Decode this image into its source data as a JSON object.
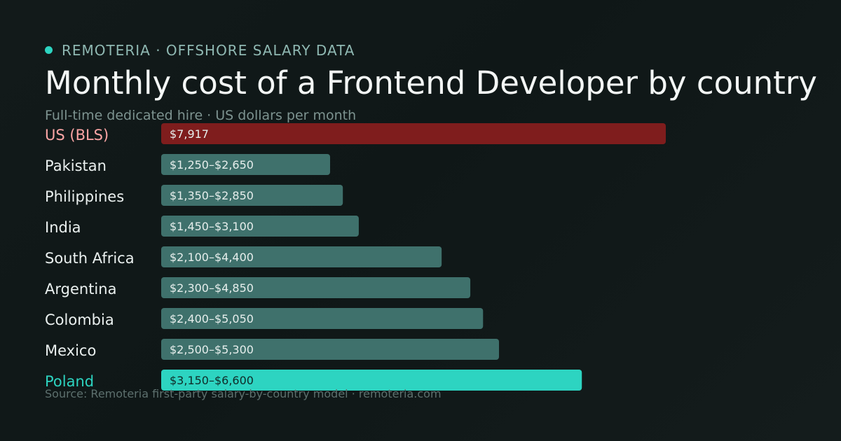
{
  "brand": {
    "label": "REMOTERIA · OFFSHORE SALARY DATA"
  },
  "title": "Monthly cost of a Frontend Developer by country",
  "subtitle": "Full-time dedicated hire · US dollars per month",
  "source": "Source: Remoteria first-party salary-by-country model · remoteria.com",
  "colors": {
    "accent": "#2dd4c1",
    "us": "#7f1d1d",
    "us_label": "#fca5a5",
    "bar": "#3f716c",
    "highlight": "#2dd4c1",
    "text": "#eaf0ef",
    "bar_text": "#e6eeec",
    "highlight_text": "#0f2b28"
  },
  "chart_data": {
    "type": "bar",
    "orientation": "horizontal",
    "xlim": [
      0,
      7917
    ],
    "grid": false,
    "rows": [
      {
        "label": "US (BLS)",
        "low": null,
        "high": 7917,
        "value_label": "$7,917",
        "style": "us"
      },
      {
        "label": "Pakistan",
        "low": 1250,
        "high": 2650,
        "value_label": "$1,250–$2,650",
        "style": "normal"
      },
      {
        "label": "Philippines",
        "low": 1350,
        "high": 2850,
        "value_label": "$1,350–$2,850",
        "style": "normal"
      },
      {
        "label": "India",
        "low": 1450,
        "high": 3100,
        "value_label": "$1,450–$3,100",
        "style": "normal"
      },
      {
        "label": "South Africa",
        "low": 2100,
        "high": 4400,
        "value_label": "$2,100–$4,400",
        "style": "normal"
      },
      {
        "label": "Argentina",
        "low": 2300,
        "high": 4850,
        "value_label": "$2,300–$4,850",
        "style": "normal"
      },
      {
        "label": "Colombia",
        "low": 2400,
        "high": 5050,
        "value_label": "$2,400–$5,050",
        "style": "normal"
      },
      {
        "label": "Mexico",
        "low": 2500,
        "high": 5300,
        "value_label": "$2,500–$5,300",
        "style": "normal"
      },
      {
        "label": "Poland",
        "low": 3150,
        "high": 6600,
        "value_label": "$3,150–$6,600",
        "style": "highlight"
      }
    ]
  }
}
